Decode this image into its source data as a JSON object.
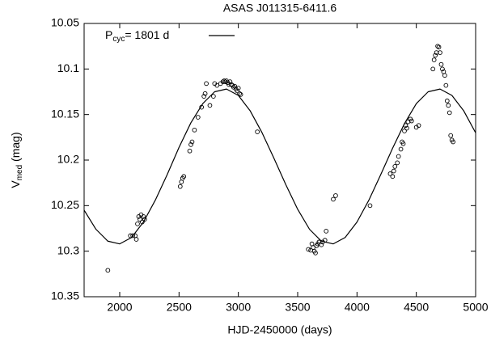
{
  "chart_data": {
    "type": "scatter",
    "title": "ASAS J011315-6411.6",
    "xlabel": "HJD-2450000 (days)",
    "ylabel_parts": [
      "V",
      "med",
      " (mag)"
    ],
    "xlim": [
      1700,
      5000
    ],
    "xticks": [
      2000,
      2500,
      3000,
      3500,
      4000,
      4500,
      5000
    ],
    "ylim": [
      10.35,
      10.05
    ],
    "yticks": [
      10.05,
      10.1,
      10.15,
      10.2,
      10.25,
      10.3,
      10.35
    ],
    "y_inverted": true,
    "grid": false,
    "legend": "top-left",
    "series": [
      {
        "type": "scatter",
        "color": "#000000",
        "x": [
          1900,
          2090,
          2110,
          2130,
          2140,
          2150,
          2160,
          2170,
          2180,
          2190,
          2200,
          2210,
          2510,
          2520,
          2530,
          2540,
          2590,
          2600,
          2610,
          2630,
          2660,
          2690,
          2710,
          2720,
          2730,
          2760,
          2790,
          2800,
          2820,
          2850,
          2870,
          2880,
          2890,
          2900,
          2910,
          2920,
          2930,
          2940,
          2950,
          2960,
          2970,
          2980,
          2990,
          3000,
          3010,
          3020,
          3160,
          3590,
          3610,
          3620,
          3630,
          3640,
          3650,
          3660,
          3670,
          3680,
          3700,
          3710,
          3730,
          3740,
          3800,
          3820,
          4110,
          4280,
          4300,
          4310,
          4320,
          4340,
          4350,
          4370,
          4380,
          4390,
          4400,
          4410,
          4420,
          4430,
          4450,
          4460,
          4500,
          4520,
          4640,
          4650,
          4660,
          4670,
          4680,
          4690,
          4700,
          4710,
          4720,
          4730,
          4740,
          4750,
          4760,
          4770,
          4780,
          4790,
          4800,
          4810
        ],
        "values": [
          10.321,
          10.283,
          10.283,
          10.283,
          10.287,
          10.27,
          10.262,
          10.265,
          10.26,
          10.268,
          10.262,
          10.265,
          10.229,
          10.224,
          10.22,
          10.218,
          10.19,
          10.183,
          10.18,
          10.167,
          10.153,
          10.142,
          10.13,
          10.127,
          10.116,
          10.14,
          10.13,
          10.116,
          10.118,
          10.116,
          10.114,
          10.113,
          10.114,
          10.113,
          10.115,
          10.117,
          10.114,
          10.117,
          10.118,
          10.12,
          10.119,
          10.122,
          10.124,
          10.121,
          10.127,
          10.128,
          10.169,
          10.298,
          10.299,
          10.292,
          10.296,
          10.3,
          10.302,
          10.294,
          10.292,
          10.29,
          10.293,
          10.29,
          10.288,
          10.278,
          10.243,
          10.239,
          10.25,
          10.215,
          10.218,
          10.212,
          10.207,
          10.203,
          10.196,
          10.188,
          10.18,
          10.182,
          10.168,
          10.162,
          10.165,
          10.158,
          10.155,
          10.157,
          10.164,
          10.162,
          10.1,
          10.09,
          10.085,
          10.082,
          10.075,
          10.076,
          10.082,
          10.095,
          10.1,
          10.103,
          10.107,
          10.118,
          10.135,
          10.14,
          10.148,
          10.173,
          10.178,
          10.18
        ]
      },
      {
        "type": "line",
        "color": "#000000",
        "name": [
          "P",
          "cyc",
          "= 1801 d"
        ],
        "x": [
          1700,
          1800,
          1900,
          2000,
          2100,
          2200,
          2300,
          2400,
          2500,
          2600,
          2700,
          2800,
          2900,
          3000,
          3100,
          3200,
          3300,
          3400,
          3500,
          3600,
          3700,
          3800,
          3900,
          4000,
          4100,
          4200,
          4300,
          4400,
          4500,
          4600,
          4700,
          4800,
          4900,
          5000
        ],
        "values": [
          10.255,
          10.276,
          10.289,
          10.292,
          10.285,
          10.268,
          10.244,
          10.216,
          10.186,
          10.159,
          10.138,
          10.125,
          10.122,
          10.129,
          10.146,
          10.17,
          10.198,
          10.227,
          10.254,
          10.276,
          10.289,
          10.292,
          10.285,
          10.268,
          10.244,
          10.216,
          10.187,
          10.16,
          10.138,
          10.125,
          10.122,
          10.129,
          10.146,
          10.17
        ]
      }
    ]
  }
}
